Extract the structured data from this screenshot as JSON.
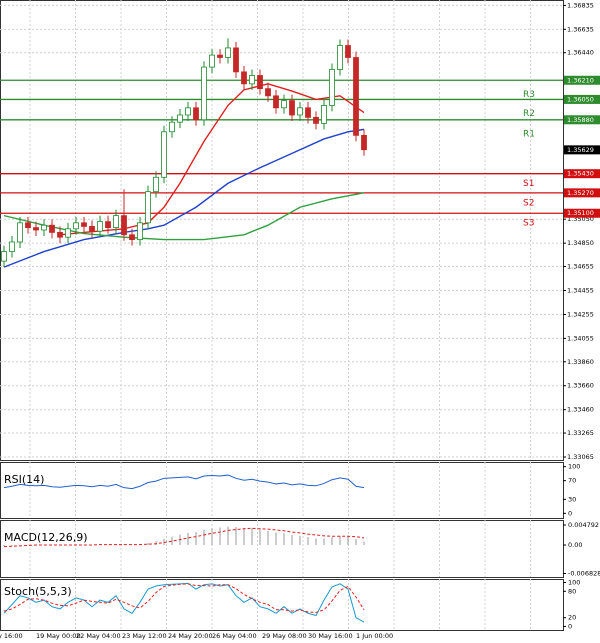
{
  "chart_data": {
    "type": "candlestick",
    "x_labels": [
      "y 16:00",
      "19 May 00:00",
      "22 May 04:00",
      "23 May 12:00",
      "24 May 20:00",
      "26 May 04:00",
      "29 May 08:00",
      "30 May 16:00",
      "1 Jun 00:00"
    ],
    "open": [
      1.347,
      1.3478,
      1.3486,
      1.3502,
      1.3498,
      1.3496,
      1.35,
      1.3494,
      1.349,
      1.3497,
      1.3502,
      1.3499,
      1.3495,
      1.3503,
      1.3498,
      1.3508,
      1.3492,
      1.3488,
      1.3502,
      1.3528,
      1.354,
      1.3578,
      1.3586,
      1.3592,
      1.3598,
      1.3588,
      1.3632,
      1.3642,
      1.364,
      1.3648,
      1.3628,
      1.3618,
      1.3625,
      1.3614,
      1.3608,
      1.3598,
      1.3604,
      1.3592,
      1.3598,
      1.359,
      1.3585,
      1.36,
      1.363,
      1.365,
      1.364,
      1.3575
    ],
    "high": [
      1.3483,
      1.3491,
      1.3507,
      1.3507,
      1.3503,
      1.3505,
      1.3505,
      1.3499,
      1.3502,
      1.3507,
      1.3507,
      1.3504,
      1.3508,
      1.3508,
      1.3513,
      1.353,
      1.3497,
      1.3507,
      1.3533,
      1.3545,
      1.3583,
      1.3591,
      1.3597,
      1.3603,
      1.3603,
      1.3637,
      1.3647,
      1.3647,
      1.3656,
      1.3653,
      1.3633,
      1.363,
      1.363,
      1.3619,
      1.3613,
      1.3609,
      1.3609,
      1.3603,
      1.3603,
      1.3595,
      1.3605,
      1.3635,
      1.3655,
      1.3655,
      1.3645,
      1.358
    ],
    "low": [
      1.3465,
      1.3473,
      1.3481,
      1.3493,
      1.3491,
      1.3491,
      1.3489,
      1.3485,
      1.3485,
      1.3492,
      1.3494,
      1.349,
      1.349,
      1.3493,
      1.3493,
      1.3487,
      1.3483,
      1.3483,
      1.3497,
      1.3523,
      1.3535,
      1.3573,
      1.3581,
      1.3587,
      1.3583,
      1.3583,
      1.3627,
      1.3635,
      1.3635,
      1.3623,
      1.3613,
      1.3613,
      1.3609,
      1.3603,
      1.3593,
      1.3593,
      1.3587,
      1.3587,
      1.3585,
      1.358,
      1.358,
      1.3595,
      1.3625,
      1.3635,
      1.357,
      1.3558
    ],
    "close": [
      1.3478,
      1.3486,
      1.3502,
      1.3498,
      1.3496,
      1.35,
      1.3494,
      1.349,
      1.3497,
      1.3502,
      1.3499,
      1.3495,
      1.3503,
      1.3498,
      1.3508,
      1.3492,
      1.3488,
      1.3502,
      1.3528,
      1.354,
      1.3578,
      1.3586,
      1.3592,
      1.3598,
      1.3588,
      1.3632,
      1.3642,
      1.364,
      1.3648,
      1.3628,
      1.3618,
      1.3625,
      1.3614,
      1.3608,
      1.3598,
      1.3604,
      1.3592,
      1.3598,
      1.359,
      1.3585,
      1.36,
      1.363,
      1.365,
      1.364,
      1.3575,
      1.3563
    ],
    "bull_color": "#1e8c2e",
    "bear_color": "#c62828",
    "ylim": [
      1.3304,
      1.3688
    ],
    "yticks": [
      1.36835,
      1.36635,
      {
        "value": 1.3644,
        "label": "1.36440"
      },
      {
        "value": 1.3505,
        "label": "1.35050"
      },
      {
        "value": 1.3485,
        "label": "1.34850"
      },
      1.34655,
      1.34455,
      1.34255,
      1.34055,
      {
        "value": 1.3386,
        "label": "1.33860"
      },
      {
        "value": 1.3366,
        "label": "1.33660"
      },
      {
        "value": 1.3346,
        "label": "1.33460"
      },
      1.33265,
      1.33065
    ],
    "grid": true,
    "levels": [
      {
        "name": "R3",
        "value": 1.3621,
        "value_label": "1.36210",
        "color": "#2e8b2e"
      },
      {
        "name": "R2",
        "value": 1.3605,
        "value_label": "1.36050",
        "color": "#2e8b2e"
      },
      {
        "name": "R1",
        "value": 1.3588,
        "value_label": "1.35880",
        "color": "#2e8b2e"
      },
      {
        "name": "S1",
        "value": 1.3543,
        "value_label": "1.35430",
        "color": "#d01010"
      },
      {
        "name": "S2",
        "value": 1.3527,
        "value_label": "1.35270",
        "color": "#d01010"
      },
      {
        "name": "S3",
        "value": 1.351,
        "value_label": "1.35100",
        "color": "#d01010"
      }
    ],
    "last_price": 1.35629,
    "moving_averages": [
      {
        "color": "#e02020",
        "x": [
          7,
          10,
          15,
          18,
          20,
          22,
          25,
          28,
          30,
          33,
          36,
          39,
          42,
          45
        ],
        "values": [
          1.3492,
          1.3494,
          1.3497,
          1.3502,
          1.3515,
          1.3535,
          1.357,
          1.36,
          1.3613,
          1.3618,
          1.3612,
          1.3605,
          1.3608,
          1.3594
        ]
      },
      {
        "color": "#2040d0",
        "x": [
          0,
          5,
          10,
          15,
          18,
          20,
          24,
          28,
          32,
          36,
          40,
          43,
          45
        ],
        "values": [
          1.3465,
          1.3478,
          1.3488,
          1.3494,
          1.3497,
          1.35,
          1.3515,
          1.3535,
          1.3548,
          1.356,
          1.3572,
          1.3578,
          1.358
        ]
      },
      {
        "color": "#30a040",
        "x": [
          0,
          5,
          10,
          15,
          20,
          25,
          30,
          33,
          37,
          41,
          45
        ],
        "values": [
          1.3508,
          1.35,
          1.3493,
          1.349,
          1.3488,
          1.3488,
          1.3492,
          1.35,
          1.3515,
          1.3522,
          1.3527
        ]
      }
    ],
    "indicators": [
      {
        "label": "RSI(14)",
        "ylim": [
          -10,
          110
        ],
        "yticks": [
          100,
          70,
          30,
          0
        ],
        "series": [
          {
            "style": "line",
            "color": "#2060d0",
            "values": [
              55,
              58,
              62,
              60,
              59,
              60,
              57,
              56,
              58,
              60,
              59,
              57,
              60,
              58,
              62,
              55,
              53,
              58,
              66,
              69,
              75,
              76,
              77,
              78,
              74,
              80,
              81,
              80,
              82,
              75,
              71,
              73,
              69,
              67,
              63,
              65,
              61,
              63,
              60,
              59,
              64,
              72,
              76,
              73,
              58,
              55
            ]
          }
        ]
      },
      {
        "label": "MACD(12,26,9)",
        "ylim": [
          -0.00767,
          0.00599
        ],
        "yticks": [
          0.004792,
          {
            "value": 0,
            "label": "0.00"
          },
          -0.006828
        ],
        "series": [
          {
            "style": "bar",
            "color": "#9a9a9a",
            "values": [
              -0.0003,
              -0.0002,
              0,
              0.0001,
              0.0001,
              0.0001,
              0,
              -0.0001,
              0,
              0.0001,
              0.0001,
              0,
              0.0001,
              0.0001,
              0.0002,
              0.0001,
              0,
              0.0001,
              0.0005,
              0.0009,
              0.0015,
              0.002,
              0.0025,
              0.0029,
              0.0031,
              0.0036,
              0.004,
              0.0042,
              0.0044,
              0.0043,
              0.0041,
              0.004,
              0.0037,
              0.0034,
              0.003,
              0.0028,
              0.0024,
              0.0022,
              0.0019,
              0.0016,
              0.0016,
              0.0019,
              0.0022,
              0.0022,
              0.0014,
              0.0008
            ]
          },
          {
            "style": "dashed",
            "color": "#e02020",
            "values": [
              -0.0004,
              -0.0003,
              -0.0002,
              -0.0001,
              0,
              0,
              0,
              0,
              0,
              0,
              0,
              0,
              0.0001,
              0.0001,
              0.0001,
              0.0001,
              0.0001,
              0.0001,
              0.0002,
              0.0003,
              0.0006,
              0.0009,
              0.0013,
              0.0017,
              0.002,
              0.0024,
              0.0028,
              0.0031,
              0.0035,
              0.0037,
              0.0039,
              0.004,
              0.0039,
              0.0038,
              0.0036,
              0.0034,
              0.0031,
              0.0029,
              0.0026,
              0.0024,
              0.0022,
              0.0021,
              0.0021,
              0.0021,
              0.002,
              0.0017
            ]
          }
        ]
      },
      {
        "label": "Stoch(5,5,3)",
        "ylim": [
          -8,
          108
        ],
        "yticks": [
          100,
          80,
          20,
          0
        ],
        "series": [
          {
            "style": "line",
            "color": "#1a9ad0",
            "values": [
              30,
              50,
              70,
              65,
              55,
              60,
              45,
              40,
              55,
              65,
              60,
              45,
              60,
              55,
              70,
              40,
              30,
              55,
              85,
              92,
              95,
              96,
              97,
              98,
              85,
              95,
              97,
              92,
              95,
              70,
              55,
              65,
              45,
              40,
              30,
              45,
              30,
              40,
              30,
              25,
              60,
              90,
              97,
              85,
              20,
              10
            ]
          },
          {
            "style": "dashed",
            "color": "#e02020",
            "values": [
              35,
              40,
              50,
              62,
              63,
              60,
              53,
              48,
              47,
              53,
              60,
              57,
              55,
              53,
              62,
              55,
              47,
              42,
              57,
              77,
              91,
              94,
              96,
              97,
              93,
              93,
              92,
              95,
              95,
              86,
              73,
              63,
              55,
              50,
              38,
              38,
              35,
              38,
              33,
              32,
              38,
              58,
              82,
              91,
              67,
              38
            ]
          }
        ]
      }
    ]
  }
}
